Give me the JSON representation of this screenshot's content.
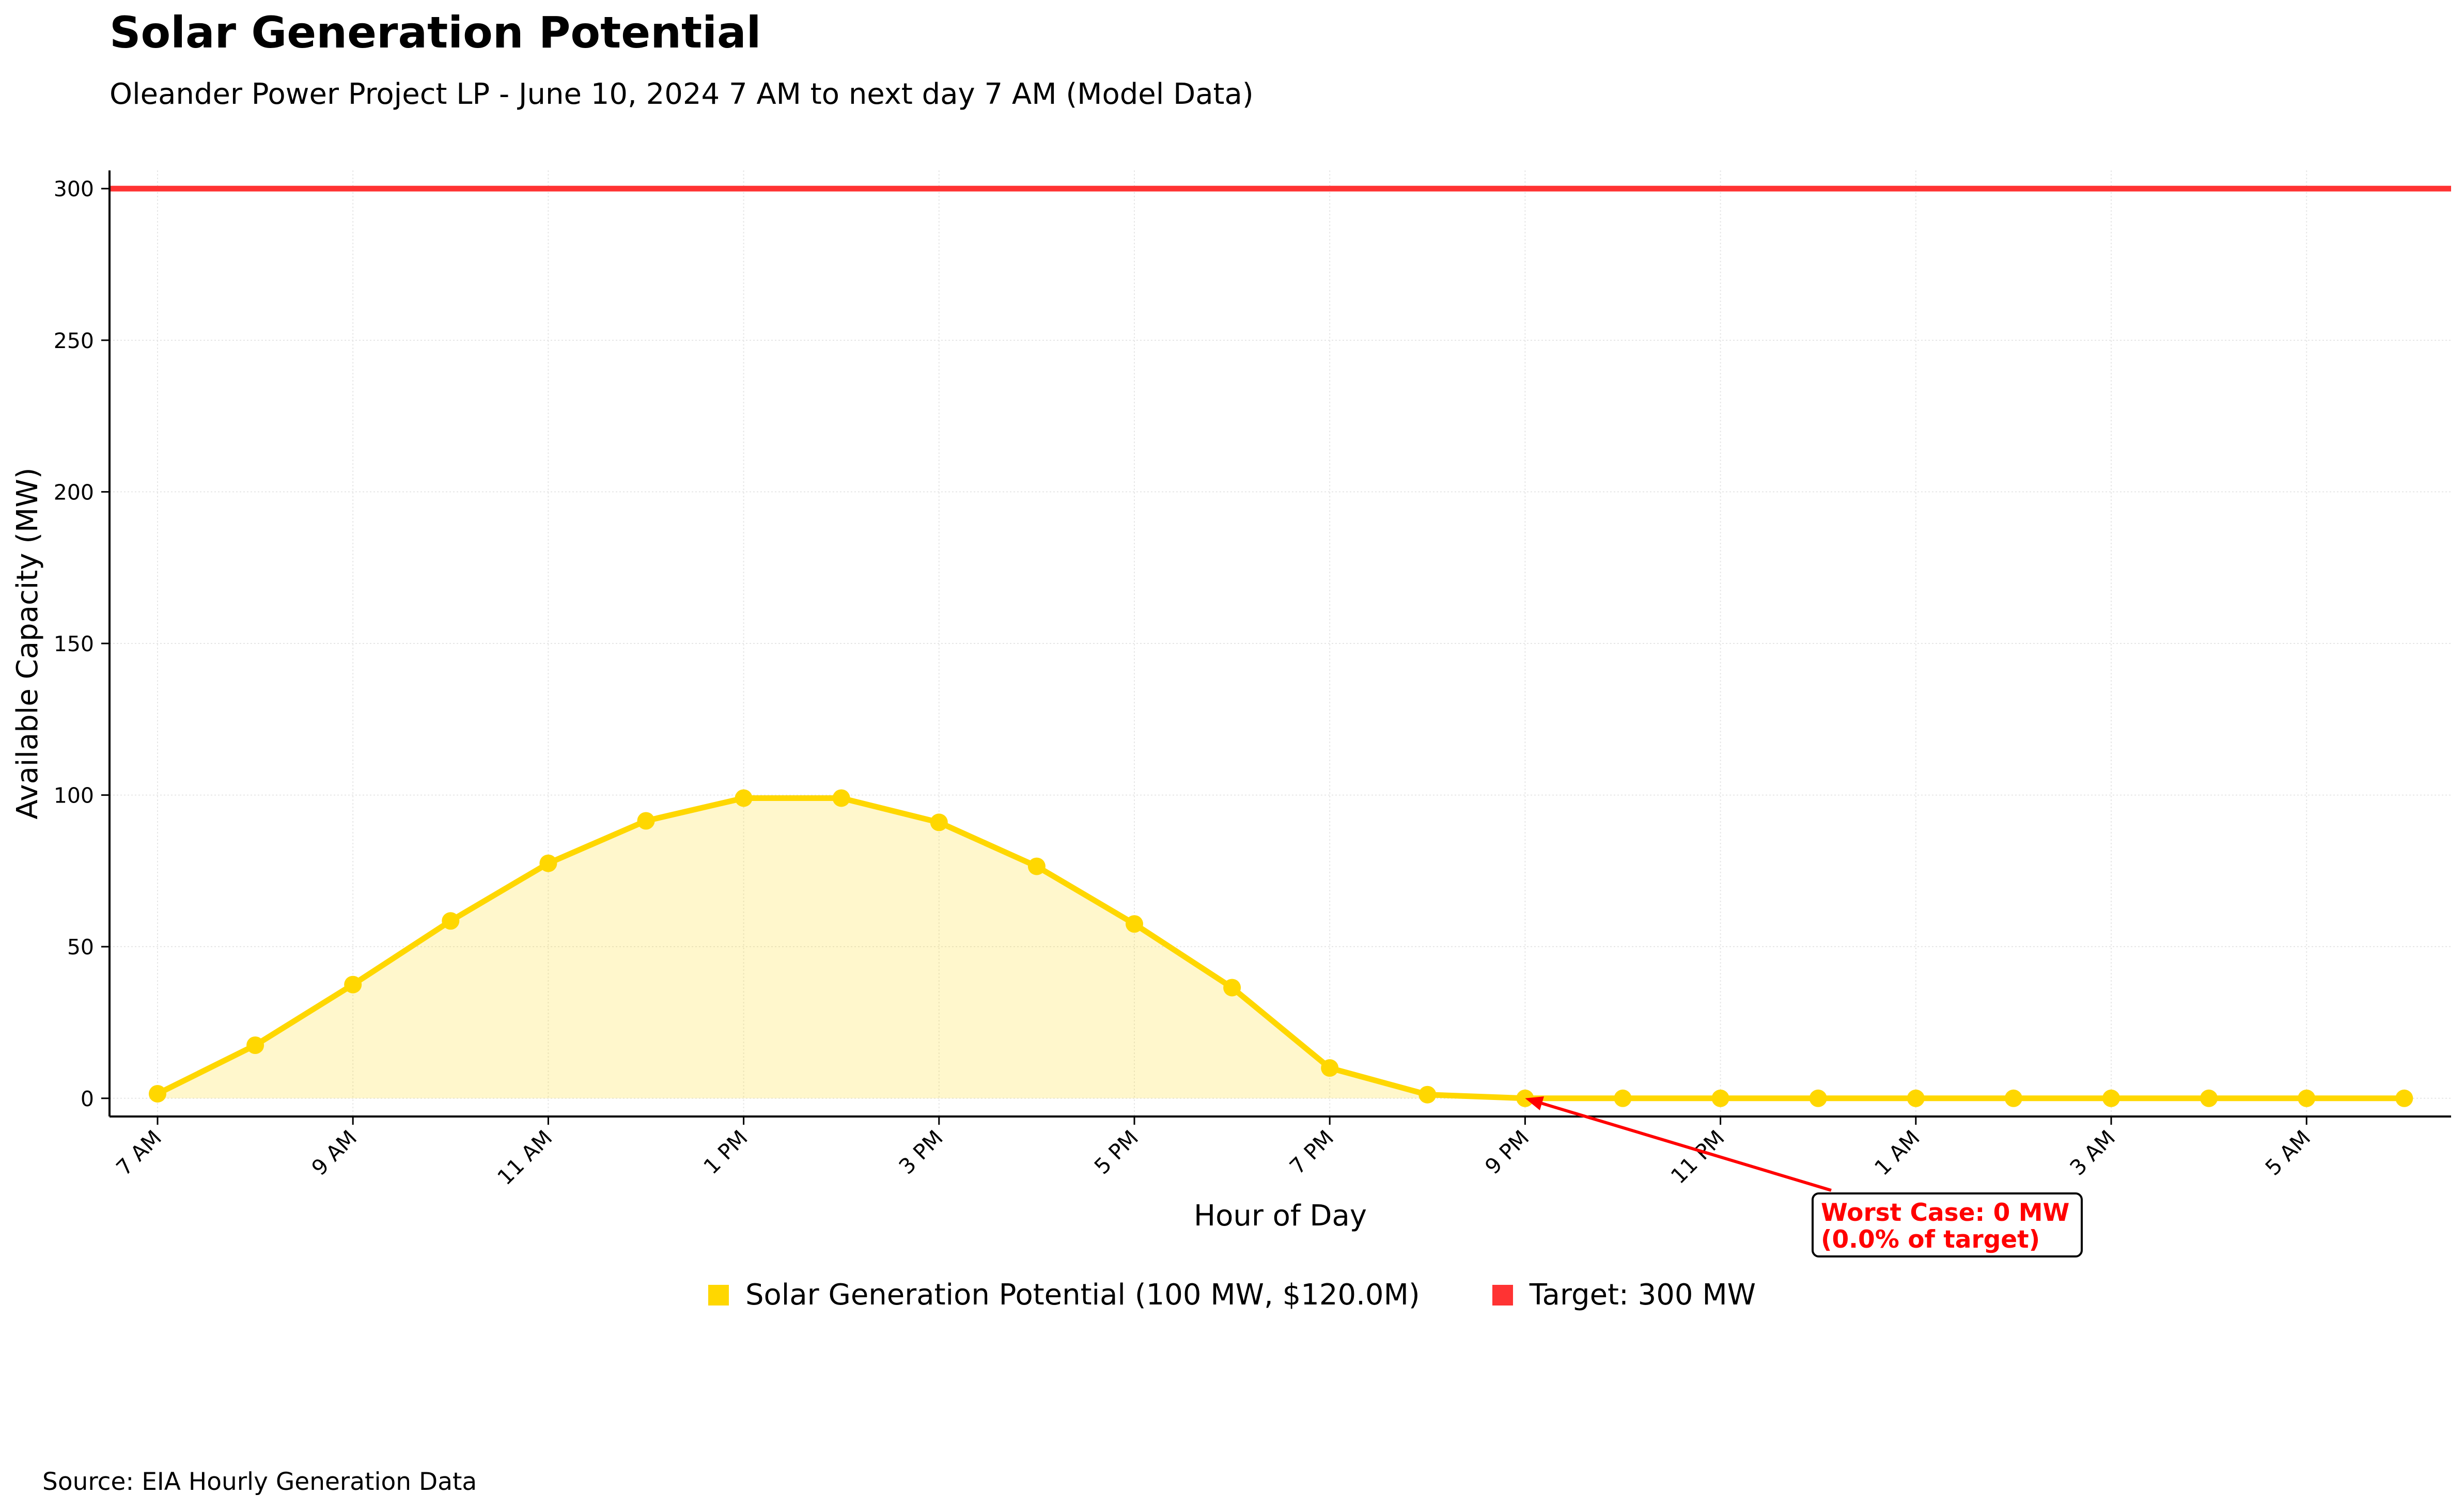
{
  "title": "Solar Generation Potential",
  "subtitle": "Oleander Power Project LP - June 10, 2024 7 AM to next day 7 AM (Model Data)",
  "source": "Source: EIA Hourly Generation Data",
  "chart_data": {
    "type": "line",
    "title": "Solar Generation Potential",
    "subtitle": "Oleander Power Project LP - June 10, 2024 7 AM to next day 7 AM (Model Data)",
    "xlabel": "Hour of Day",
    "ylabel": "Available Capacity (MW)",
    "x": [
      "7 AM",
      "8 AM",
      "9 AM",
      "10 AM",
      "11 AM",
      "12 PM",
      "1 PM",
      "2 PM",
      "3 PM",
      "4 PM",
      "5 PM",
      "6 PM",
      "7 PM",
      "8 PM",
      "9 PM",
      "10 PM",
      "11 PM",
      "12 AM",
      "1 AM",
      "2 AM",
      "3 AM",
      "4 AM",
      "5 AM",
      "6 AM"
    ],
    "x_tick_labels": [
      "7 AM",
      "9 AM",
      "11 AM",
      "1 PM",
      "3 PM",
      "5 PM",
      "7 PM",
      "9 PM",
      "11 PM",
      "1 AM",
      "3 AM",
      "5 AM"
    ],
    "y_ticks": [
      0,
      50,
      100,
      150,
      200,
      250,
      300
    ],
    "ylim": [
      -6,
      306
    ],
    "grid": true,
    "legend_placement": "bottom-center",
    "series": [
      {
        "name": "Solar Generation Potential (100 MW, $120.0M)",
        "color": "#FFD700",
        "fill": true,
        "values": [
          1.5,
          17.5,
          37.5,
          58.5,
          77.5,
          91.5,
          99,
          99,
          91,
          76.5,
          57.5,
          36.5,
          10,
          1.2,
          0,
          0,
          0,
          0,
          0,
          0,
          0,
          0,
          0,
          0
        ]
      }
    ],
    "target_line": {
      "name": "Target: 300 MW",
      "value": 300,
      "color": "#FF3333"
    },
    "annotation": {
      "line1": "Worst Case: 0 MW",
      "line2": "(0.0% of target)",
      "point_x": "9 PM",
      "point_y": 0,
      "color": "#FF0000"
    }
  }
}
